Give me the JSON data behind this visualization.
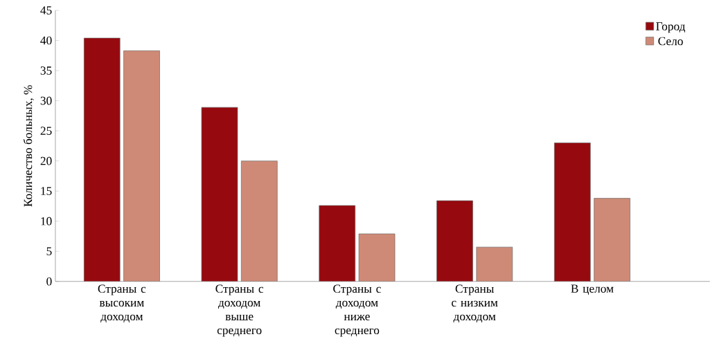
{
  "chart_data": {
    "type": "bar",
    "ylabel": "Количество больных, %",
    "categories": [
      "Страны с высоким доходом",
      "Страны с доходом выше среднего",
      "Страны с доходом ниже среднего",
      "Страны с низким доходом",
      "В целом"
    ],
    "series": [
      {
        "name": "Город",
        "color": "#960a0f",
        "values": [
          40.4,
          28.9,
          12.6,
          13.4,
          23.0
        ]
      },
      {
        "name": "Село",
        "color": "#ce8a76",
        "values": [
          38.3,
          20.0,
          7.9,
          5.7,
          13.8
        ]
      }
    ],
    "ylim": [
      0,
      45
    ],
    "yticks": [
      0,
      5,
      10,
      15,
      20,
      25,
      30,
      35,
      40,
      45
    ],
    "legend": "top right"
  }
}
